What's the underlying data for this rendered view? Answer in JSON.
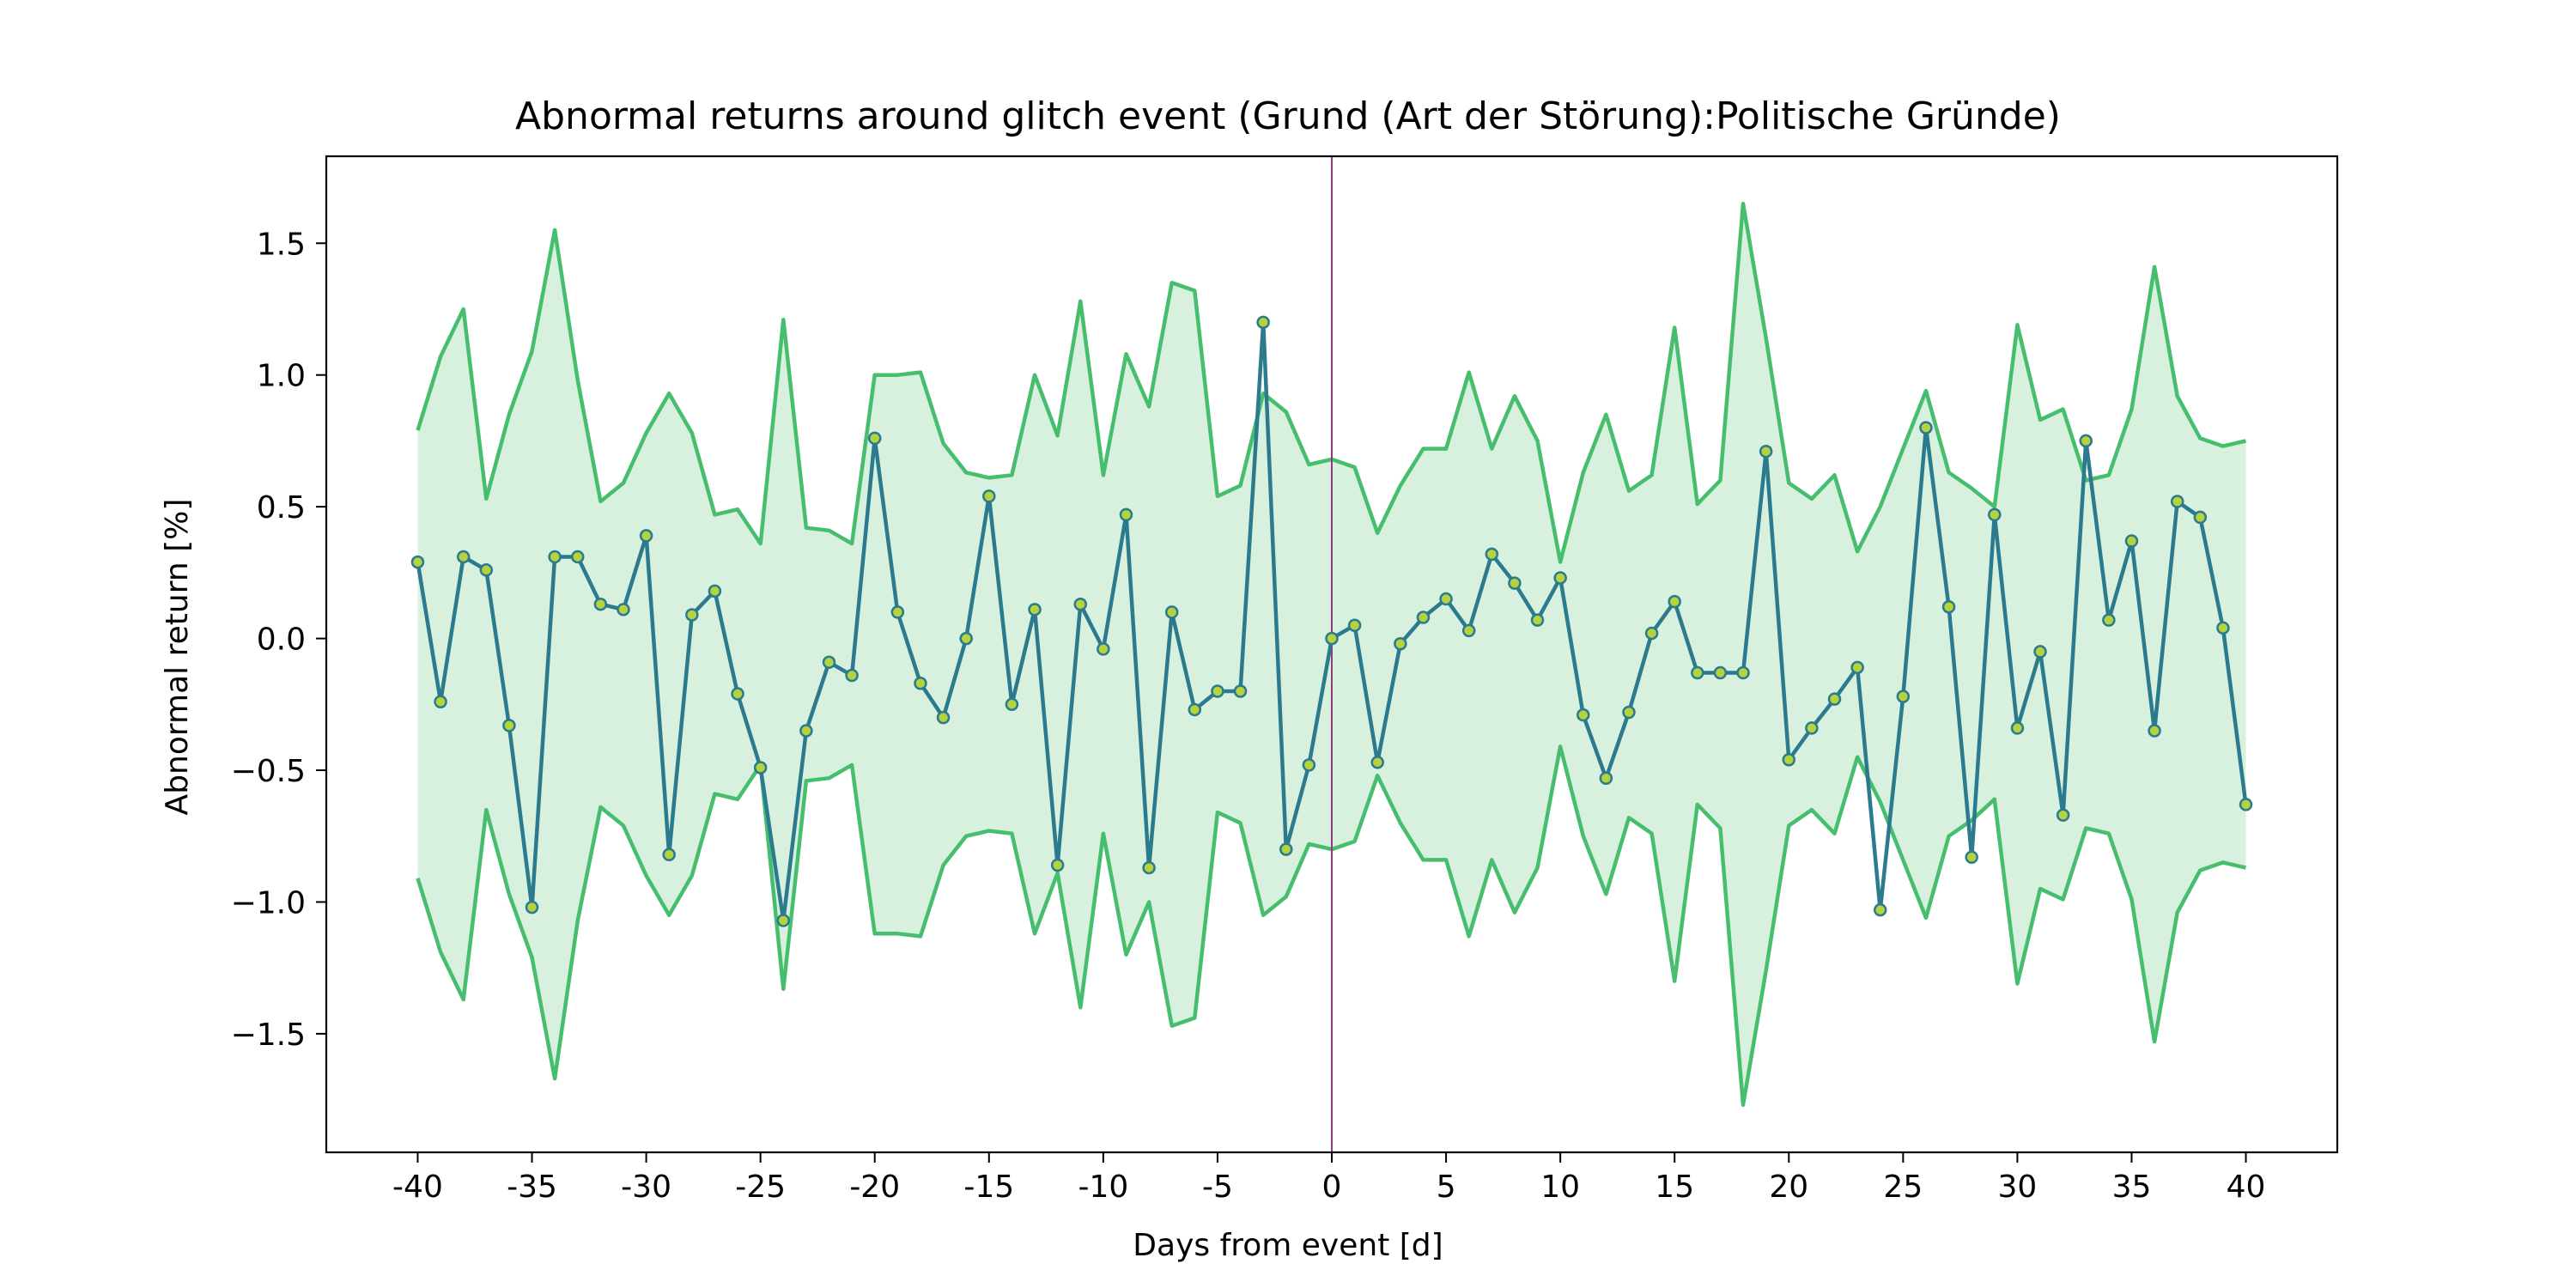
{
  "chart_data": {
    "type": "line",
    "title": "Abnormal returns around glitch event (Grund (Art der Störung):Politische Gründe)",
    "xlabel": "Days from event [d]",
    "ylabel": "Abnormal return [%]",
    "xlim": [
      -44,
      44
    ],
    "ylim": [
      -1.95,
      1.83
    ],
    "x_ticks": [
      -40,
      -35,
      -30,
      -25,
      -20,
      -15,
      -10,
      -5,
      0,
      5,
      10,
      15,
      20,
      25,
      30,
      35,
      40
    ],
    "x_tick_labels": [
      "-40",
      "-35",
      "-30",
      "-25",
      "-20",
      "-15",
      "-10",
      "-5",
      "0",
      "5",
      "10",
      "15",
      "20",
      "25",
      "30",
      "35",
      "40"
    ],
    "y_ticks": [
      -1.5,
      -1.0,
      -0.5,
      0.0,
      0.5,
      1.0,
      1.5
    ],
    "y_tick_labels": [
      "−1.5",
      "−1.0",
      "−0.5",
      "0.0",
      "0.5",
      "1.0",
      "1.5"
    ],
    "event_line_x": 0,
    "grid": false,
    "colors": {
      "mean_line": "#2b7a8e",
      "marker_fill": "#b5d33f",
      "band_line": "#47be6e",
      "band_fill": "#d8f1df",
      "event_line": "#8c3d7a",
      "axes": "#000000"
    },
    "x": [
      -40,
      -39,
      -38,
      -37,
      -36,
      -35,
      -34,
      -33,
      -32,
      -31,
      -30,
      -29,
      -28,
      -27,
      -26,
      -25,
      -24,
      -23,
      -22,
      -21,
      -20,
      -19,
      -18,
      -17,
      -16,
      -15,
      -14,
      -13,
      -12,
      -11,
      -10,
      -9,
      -8,
      -7,
      -6,
      -5,
      -4,
      -3,
      -2,
      -1,
      0,
      1,
      2,
      3,
      4,
      5,
      6,
      7,
      8,
      9,
      10,
      11,
      12,
      13,
      14,
      15,
      16,
      17,
      18,
      19,
      20,
      21,
      22,
      23,
      24,
      25,
      26,
      27,
      28,
      29,
      30,
      31,
      32,
      33,
      34,
      35,
      36,
      37,
      38,
      39,
      40
    ],
    "series": [
      {
        "values": [
          0.29,
          -0.24,
          0.31,
          0.26,
          -0.33,
          -1.02,
          0.31,
          0.31,
          0.13,
          0.11,
          0.39,
          -0.82,
          0.09,
          0.18,
          -0.21,
          -0.49,
          -1.07,
          -0.35,
          -0.09,
          -0.14,
          0.76,
          0.1,
          -0.17,
          -0.3,
          0.0,
          0.54,
          -0.25,
          0.11,
          -0.86,
          0.13,
          -0.04,
          0.47,
          -0.87,
          0.1,
          -0.27,
          -0.2,
          -0.2,
          1.2,
          -0.8,
          -0.48,
          0.0,
          0.05,
          -0.47,
          -0.02,
          0.08,
          0.15,
          0.03,
          0.32,
          0.21,
          0.07,
          0.23,
          -0.29,
          -0.53,
          -0.28,
          0.02,
          0.14,
          -0.13,
          -0.13,
          -0.13,
          0.71,
          -0.46,
          -0.34,
          -0.23,
          -0.11,
          -1.03,
          -0.22,
          0.8,
          0.12,
          -0.83,
          0.47,
          -0.34,
          -0.05,
          -0.67,
          0.75,
          0.07,
          0.37,
          -0.35,
          0.52,
          0.46,
          0.04,
          -0.63
        ]
      },
      {
        "values": [
          0.79,
          1.07,
          1.25,
          0.53,
          0.85,
          1.09,
          1.55,
          0.98,
          0.52,
          0.59,
          0.78,
          0.93,
          0.78,
          0.47,
          0.49,
          0.36,
          1.21,
          0.42,
          0.41,
          0.36,
          1.0,
          1.0,
          1.01,
          0.74,
          0.63,
          0.61,
          0.62,
          1.0,
          0.77,
          1.28,
          0.62,
          1.08,
          0.88,
          1.35,
          1.32,
          0.54,
          0.58,
          0.93,
          0.86,
          0.66,
          0.68,
          0.65,
          0.4,
          0.58,
          0.72,
          0.72,
          1.01,
          0.72,
          0.92,
          0.75,
          0.29,
          0.63,
          0.85,
          0.56,
          0.62,
          1.18,
          0.51,
          0.6,
          1.65,
          1.14,
          0.59,
          0.53,
          0.62,
          0.33,
          0.5,
          0.72,
          0.94,
          0.63,
          0.57,
          0.5,
          1.19,
          0.83,
          0.87,
          0.6,
          0.62,
          0.87,
          1.41,
          0.92,
          0.76,
          0.73,
          0.75
        ]
      },
      {
        "values": [
          -0.91,
          -1.19,
          -1.37,
          -0.65,
          -0.97,
          -1.21,
          -1.67,
          -1.07,
          -0.64,
          -0.71,
          -0.9,
          -1.05,
          -0.9,
          -0.59,
          -0.61,
          -0.48,
          -1.33,
          -0.54,
          -0.53,
          -0.48,
          -1.12,
          -1.12,
          -1.13,
          -0.86,
          -0.75,
          -0.73,
          -0.74,
          -1.12,
          -0.89,
          -1.4,
          -0.74,
          -1.2,
          -1.0,
          -1.47,
          -1.44,
          -0.66,
          -0.7,
          -1.05,
          -0.98,
          -0.78,
          -0.8,
          -0.77,
          -0.52,
          -0.7,
          -0.84,
          -0.84,
          -1.13,
          -0.84,
          -1.04,
          -0.87,
          -0.41,
          -0.75,
          -0.97,
          -0.68,
          -0.74,
          -1.3,
          -0.63,
          -0.72,
          -1.77,
          -1.26,
          -0.71,
          -0.65,
          -0.74,
          -0.45,
          -0.62,
          -0.84,
          -1.06,
          -0.75,
          -0.69,
          -0.61,
          -1.31,
          -0.95,
          -0.99,
          -0.72,
          -0.74,
          -0.99,
          -1.53,
          -1.04,
          -0.88,
          -0.85,
          -0.87
        ]
      }
    ]
  }
}
